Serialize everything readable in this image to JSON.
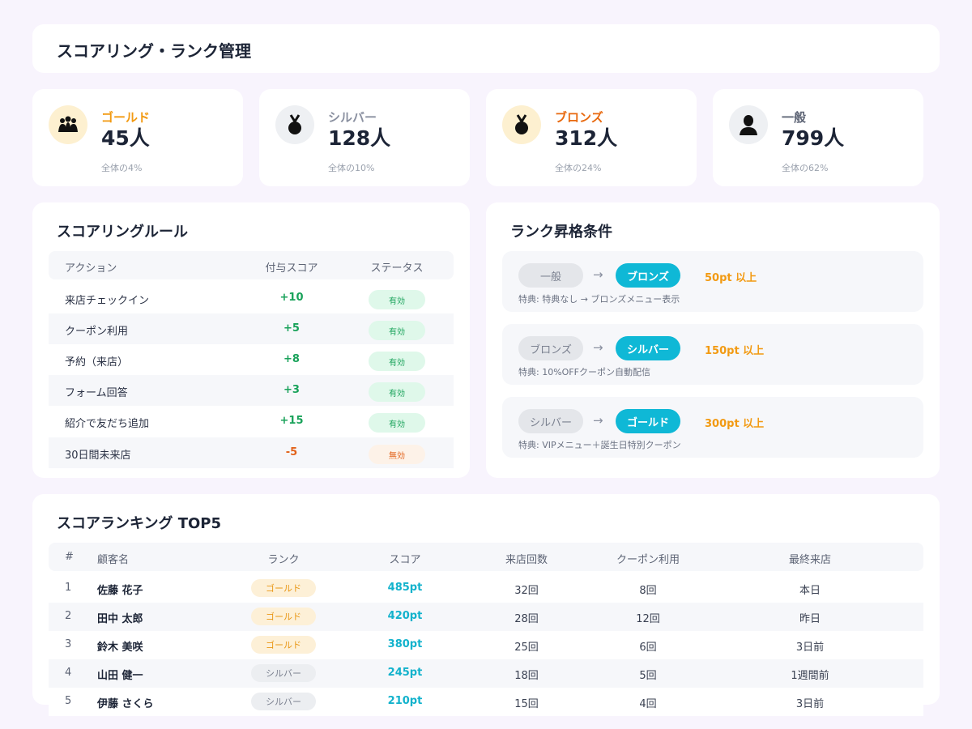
{
  "page": {
    "title": "スコアリング・ランク管理"
  },
  "colors": {
    "gold": "#f29a12",
    "silver": "#8a90a0",
    "bronze": "#e86a10",
    "accent": "#0fb8d6",
    "positive": "#19a25a",
    "negative": "#e2621a"
  },
  "rank_summary": [
    {
      "name": "ゴールド",
      "count": "45人",
      "share": "全体の4%",
      "icon": "crowd-icon"
    },
    {
      "name": "シルバー",
      "count": "128人",
      "share": "全体の10%",
      "icon": "medal-icon"
    },
    {
      "name": "ブロンズ",
      "count": "312人",
      "share": "全体の24%",
      "icon": "medal-icon"
    },
    {
      "name": "一般",
      "count": "799人",
      "share": "全体の62%",
      "icon": "person-icon"
    }
  ],
  "rules": {
    "title": "スコアリングルール",
    "columns": [
      "アクション",
      "付与スコア",
      "ステータス"
    ],
    "rows": [
      {
        "action": "来店チェックイン",
        "score": "+10",
        "status": "有効"
      },
      {
        "action": "クーポン利用",
        "score": "+5",
        "status": "有効"
      },
      {
        "action": "予約（来店）",
        "score": "+8",
        "status": "有効"
      },
      {
        "action": "フォーム回答",
        "score": "+3",
        "status": "有効"
      },
      {
        "action": "紹介で友だち追加",
        "score": "+15",
        "status": "有効"
      },
      {
        "action": "30日間未来店",
        "score": "-5",
        "status": "無効"
      }
    ]
  },
  "promotion": {
    "title": "ランク昇格条件",
    "arrow": "→",
    "items": [
      {
        "from": "一般",
        "to": "ブロンズ",
        "requirement": "50pt 以上",
        "perk": "特典: 特典なし → ブロンズメニュー表示"
      },
      {
        "from": "ブロンズ",
        "to": "シルバー",
        "requirement": "150pt 以上",
        "perk": "特典: 10%OFFクーポン自動配信"
      },
      {
        "from": "シルバー",
        "to": "ゴールド",
        "requirement": "300pt 以上",
        "perk": "特典: VIPメニュー＋誕生日特別クーポン"
      }
    ]
  },
  "ranking": {
    "title": "スコアランキング TOP5",
    "columns": [
      "#",
      "顧客名",
      "ランク",
      "スコア",
      "来店回数",
      "クーポン利用",
      "最終来店"
    ],
    "rows": [
      {
        "num": "1",
        "name": "佐藤 花子",
        "rank": "ゴールド",
        "score": "485pt",
        "visits": "32回",
        "coupons": "8回",
        "last": "本日"
      },
      {
        "num": "2",
        "name": "田中 太郎",
        "rank": "ゴールド",
        "score": "420pt",
        "visits": "28回",
        "coupons": "12回",
        "last": "昨日"
      },
      {
        "num": "3",
        "name": "鈴木 美咲",
        "rank": "ゴールド",
        "score": "380pt",
        "visits": "25回",
        "coupons": "6回",
        "last": "3日前"
      },
      {
        "num": "4",
        "name": "山田 健一",
        "rank": "シルバー",
        "score": "245pt",
        "visits": "18回",
        "coupons": "5回",
        "last": "1週間前"
      },
      {
        "num": "5",
        "name": "伊藤 さくら",
        "rank": "シルバー",
        "score": "210pt",
        "visits": "15回",
        "coupons": "4回",
        "last": "3日前"
      }
    ]
  }
}
